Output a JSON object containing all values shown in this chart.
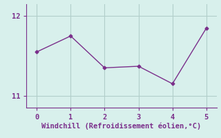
{
  "x": [
    0,
    1,
    2,
    3,
    4,
    5
  ],
  "y": [
    11.55,
    11.75,
    11.35,
    11.37,
    11.15,
    11.85
  ],
  "line_color": "#7b2f8b",
  "marker": "D",
  "marker_size": 2.5,
  "bg_color": "#d8f0ec",
  "grid_color": "#b2ceca",
  "xlabel": "Windchill (Refroidissement éolien,°C)",
  "xlabel_color": "#7b2f8b",
  "tick_color": "#7b2f8b",
  "spine_color": "#7b2f8b",
  "xlim": [
    -0.3,
    5.3
  ],
  "ylim": [
    10.85,
    12.15
  ],
  "yticks": [
    11,
    12
  ],
  "xticks": [
    0,
    1,
    2,
    3,
    4,
    5
  ],
  "xlabel_fontsize": 7.5,
  "tick_fontsize": 7.5
}
